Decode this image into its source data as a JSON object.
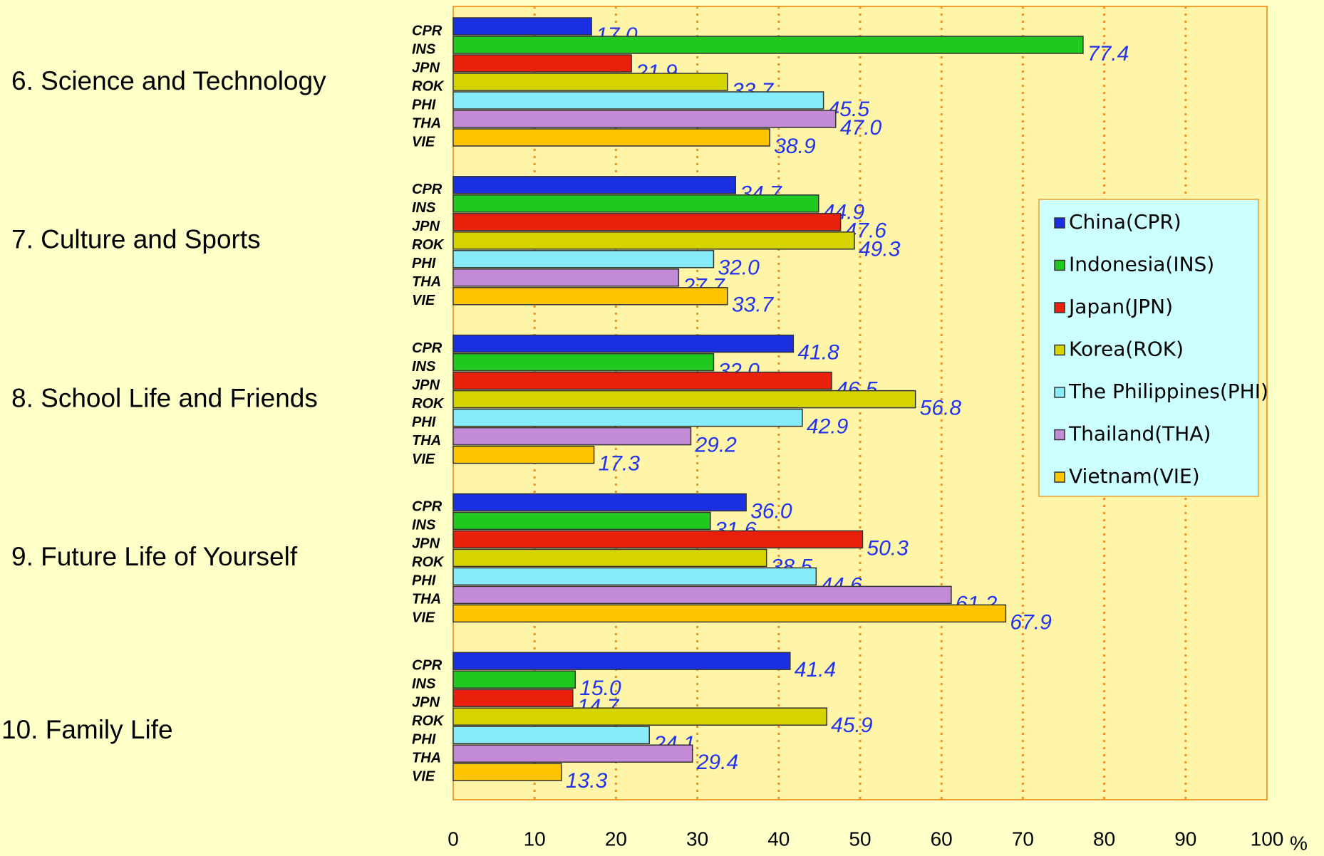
{
  "chart_data": {
    "type": "hbar_grouped",
    "xlabel": "%",
    "categories": [
      "6. Science and Technology",
      "7. Culture and Sports",
      "8. School Life and Friends",
      "9. Future Life of Yourself",
      "10. Family Life"
    ],
    "series": [
      {
        "name": "China(CPR)",
        "code": "CPR",
        "color": "#1a30e0",
        "values": [
          17.0,
          34.7,
          41.8,
          36.0,
          41.4
        ],
        "value_labels": [
          "17.0",
          "34.7",
          "41.8",
          "36.0",
          "41.4"
        ]
      },
      {
        "name": "Indonesia(INS)",
        "code": "INS",
        "color": "#20c820",
        "values": [
          77.4,
          44.9,
          32.0,
          31.6,
          15.0
        ],
        "value_labels": [
          "77.4",
          "44.9",
          "32.0",
          "31.6",
          "15.0"
        ]
      },
      {
        "name": "Japan(JPN)",
        "code": "JPN",
        "color": "#e8200c",
        "values": [
          21.9,
          47.6,
          46.5,
          50.3,
          14.7
        ],
        "value_labels": [
          "21.9",
          "47.6",
          "46.5",
          "50.3",
          "14.7"
        ]
      },
      {
        "name": "Korea(ROK)",
        "code": "ROK",
        "color": "#d6d400",
        "values": [
          33.7,
          49.3,
          56.8,
          38.5,
          45.9
        ],
        "value_labels": [
          "33.7",
          "49.3",
          "56.8",
          "38.5",
          "45.9"
        ]
      },
      {
        "name": "The  Philippines(PHI)",
        "code": "PHI",
        "color": "#86ecfa",
        "values": [
          45.5,
          32.0,
          42.9,
          44.6,
          24.1
        ],
        "value_labels": [
          "45.5",
          "32.0",
          "42.9",
          "44.6",
          "24.1"
        ]
      },
      {
        "name": "Thailand(THA)",
        "code": "THA",
        "color": "#c38ad6",
        "values": [
          47.0,
          27.7,
          29.2,
          61.2,
          29.4
        ],
        "value_labels": [
          "47.0",
          "27.7",
          "29.2",
          "61.2",
          "29.4"
        ]
      },
      {
        "name": "Vietnam(VIE)",
        "code": "VIE",
        "color": "#ffc400",
        "values": [
          38.9,
          33.7,
          17.3,
          67.9,
          13.3
        ],
        "value_labels": [
          "38.9",
          "33.7",
          "17.3",
          "67.9",
          "13.3"
        ]
      }
    ],
    "xlim": [
      0,
      100
    ],
    "xticks": [
      0,
      10,
      20,
      30,
      40,
      50,
      60,
      70,
      80,
      90,
      100
    ],
    "grid": true,
    "legend": "right"
  }
}
